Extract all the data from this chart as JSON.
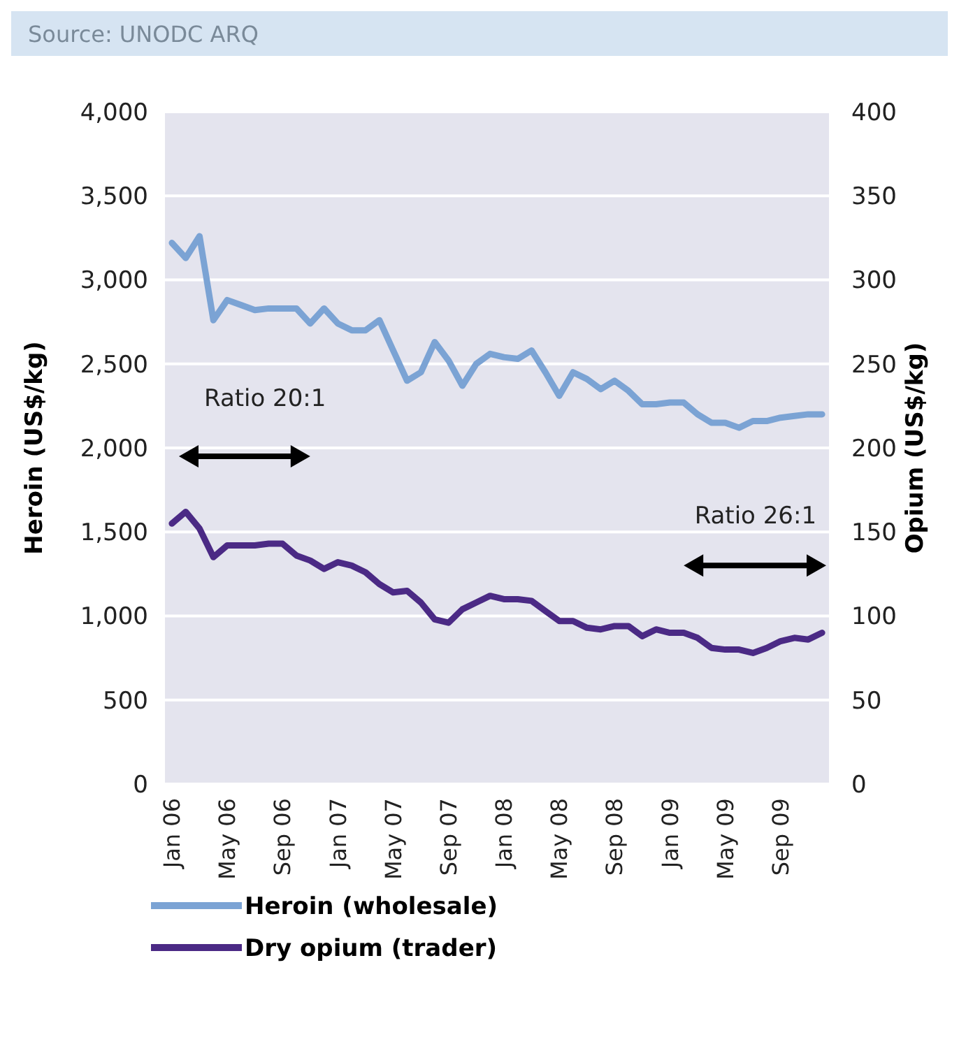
{
  "chart_data": {
    "type": "line",
    "annotations": [
      "Source: UNODC ARQ",
      "Ratio 20:1",
      "Ratio 26:1"
    ],
    "ylabel": "Heroin (US$/kg)",
    "y2label": "Opium (US$/kg)",
    "categories": [
      "Jan 06",
      null,
      null,
      null,
      "May 06",
      null,
      null,
      null,
      "Sep 06",
      null,
      null,
      null,
      "Jan 07",
      null,
      null,
      null,
      "May 07",
      null,
      null,
      null,
      "Sep 07",
      null,
      null,
      null,
      "Jan 08",
      null,
      null,
      null,
      "May 08",
      null,
      null,
      null,
      "Sep 08",
      null,
      null,
      null,
      "Jan 09",
      null,
      null,
      null,
      "May 09",
      null,
      null,
      null,
      "Sep 09",
      null,
      null,
      null
    ],
    "ylim": [
      0,
      4000
    ],
    "yticks": [
      {
        "value": 0,
        "label": "0"
      },
      {
        "value": 500,
        "label": "500"
      },
      {
        "value": 1000,
        "label": "1,000"
      },
      {
        "value": 1500,
        "label": "1,500"
      },
      {
        "value": 2000,
        "label": "2,000"
      },
      {
        "value": 2500,
        "label": "2,500"
      },
      {
        "value": 3000,
        "label": "3,000"
      },
      {
        "value": 3500,
        "label": "3,500"
      },
      {
        "value": 4000,
        "label": "4,000"
      }
    ],
    "y2lim": [
      0,
      400
    ],
    "y2ticks": [
      0,
      50,
      100,
      150,
      200,
      250,
      300,
      350,
      400
    ],
    "grid": "y",
    "legend": "bottom",
    "series": [
      {
        "name": "Heroin (wholesale)",
        "color": "#7ba3d4",
        "values": [
          3220,
          3130,
          3260,
          2760,
          2880,
          2850,
          2820,
          2830,
          2830,
          2830,
          2740,
          2830,
          2740,
          2700,
          2700,
          2760,
          2580,
          2400,
          2450,
          2630,
          2520,
          2370,
          2500,
          2560,
          2540,
          2530,
          2580,
          2450,
          2310,
          2450,
          2410,
          2350,
          2400,
          2340,
          2260,
          2260,
          2270,
          2270,
          2200,
          2150,
          2150,
          2120,
          2160,
          2160,
          2180,
          2190,
          2200,
          2200
        ]
      },
      {
        "name": "Dry opium (trader)",
        "color": "#4b2a85",
        "axis": "y2",
        "values": [
          155,
          162,
          152,
          135,
          142,
          142,
          142,
          143,
          143,
          136,
          133,
          128,
          132,
          130,
          126,
          119,
          114,
          115,
          108,
          98,
          96,
          104,
          108,
          112,
          110,
          110,
          109,
          103,
          97,
          97,
          93,
          92,
          94,
          94,
          88,
          92,
          90,
          90,
          87,
          81,
          80,
          80,
          78,
          81,
          85,
          87,
          86,
          90
        ]
      }
    ]
  }
}
